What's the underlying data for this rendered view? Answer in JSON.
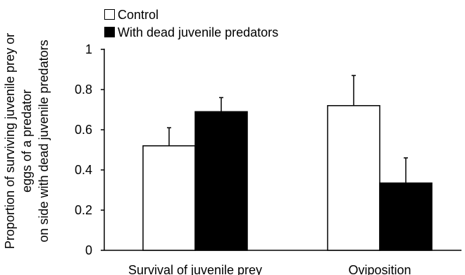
{
  "chart_data": {
    "type": "bar",
    "categories": [
      "Survival of juvenile prey",
      "Oviposition"
    ],
    "series": [
      {
        "name": "Control",
        "color": "#ffffff",
        "values": [
          0.52,
          0.72
        ],
        "errors": [
          0.09,
          0.15
        ]
      },
      {
        "name": "With dead juvenile predators",
        "color": "#000000",
        "values": [
          0.69,
          0.335
        ],
        "errors": [
          0.07,
          0.125
        ]
      }
    ],
    "ylabel": [
      "Proportion of  surviving juvenile prey or",
      "eggs of a predator",
      "on side with dead juvenile predators"
    ],
    "xlabel": "",
    "ylim": [
      0,
      1
    ],
    "yticks": [
      {
        "value": 0,
        "label": "0"
      },
      {
        "value": 0.2,
        "label": "0.2"
      },
      {
        "value": 0.4,
        "label": "0.4"
      },
      {
        "value": 0.6,
        "label": "0.6"
      },
      {
        "value": 0.8,
        "label": "0.8"
      },
      {
        "value": 1,
        "label": "1"
      }
    ],
    "grid": false,
    "legend_position": "top-left",
    "error_bars": "upper"
  }
}
